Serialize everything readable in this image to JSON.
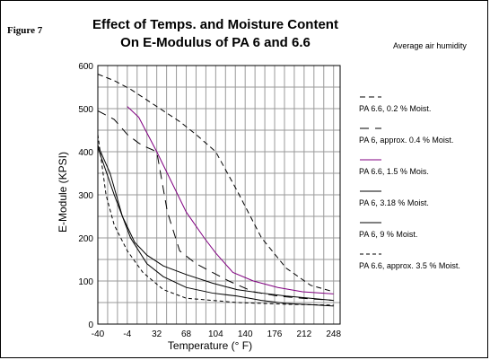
{
  "figure_label": "Figure 7",
  "title_line1": "Effect of Temps. and Moisture Content",
  "title_line2": "On E-Modulus of PA 6 and 6.6",
  "note": "Average air humidity",
  "chart_data": {
    "type": "line",
    "title": "Effect of Temps. and Moisture Content On E-Modulus of PA 6 and 6.6",
    "xlabel": "Temperature (° F)",
    "ylabel": "E-Module (KPSI)",
    "xlim": [
      -40,
      256
    ],
    "ylim": [
      0,
      600
    ],
    "x_ticks": [
      -40,
      -4,
      32,
      68,
      104,
      140,
      176,
      212,
      248
    ],
    "y_ticks": [
      0,
      100,
      200,
      300,
      400,
      500,
      600
    ],
    "grid": true,
    "legend_position": "right",
    "series": [
      {
        "name": "PA 6.6, 0.2 % Moist.",
        "style": "dash-medium",
        "color": "#000000",
        "x": [
          -40,
          -20,
          0,
          20,
          40,
          60,
          80,
          104,
          130,
          160,
          190,
          220,
          248
        ],
        "y": [
          580,
          565,
          545,
          520,
          495,
          470,
          440,
          400,
          310,
          200,
          130,
          90,
          75
        ]
      },
      {
        "name": "PA 6, approx. 0.4 % Moist.",
        "style": "dash-long-sparse",
        "color": "#000000",
        "x": [
          -40,
          -20,
          -4,
          10,
          20,
          32,
          45,
          60,
          80,
          100,
          120,
          150,
          180,
          210,
          248
        ],
        "y": [
          495,
          475,
          440,
          420,
          410,
          400,
          260,
          170,
          140,
          120,
          100,
          75,
          65,
          60,
          55
        ]
      },
      {
        "name": "PA 6.6, 1.5 % Mois.",
        "style": "solid",
        "color": "#800080",
        "x": [
          -4,
          10,
          32,
          50,
          68,
          90,
          104,
          125,
          150,
          180,
          210,
          248
        ],
        "y": [
          505,
          480,
          400,
          330,
          260,
          200,
          165,
          120,
          100,
          85,
          75,
          70
        ]
      },
      {
        "name": "PA 6, 3.18 % Moist.",
        "style": "solid",
        "color": "#000000",
        "x": [
          -40,
          -25,
          -10,
          5,
          20,
          40,
          68,
          100,
          130,
          160,
          190,
          220,
          248
        ],
        "y": [
          415,
          350,
          250,
          190,
          160,
          135,
          115,
          95,
          80,
          72,
          65,
          60,
          55
        ]
      },
      {
        "name": "PA 6, 9 % Moist.",
        "style": "solid",
        "color": "#000000",
        "x": [
          -40,
          -20,
          0,
          20,
          40,
          68,
          100,
          130,
          160,
          190,
          220,
          248
        ],
        "y": [
          410,
          300,
          200,
          140,
          110,
          85,
          72,
          65,
          55,
          48,
          45,
          42
        ]
      },
      {
        "name": "PA 6.6, approx. 3.5 % Moist.",
        "style": "dash-short",
        "color": "#000000",
        "x": [
          -40,
          -30,
          -20,
          -4,
          15,
          40,
          68,
          100,
          130,
          160,
          190,
          220,
          248
        ],
        "y": [
          440,
          300,
          230,
          170,
          120,
          80,
          60,
          55,
          50,
          48,
          46,
          45,
          44
        ]
      }
    ]
  }
}
